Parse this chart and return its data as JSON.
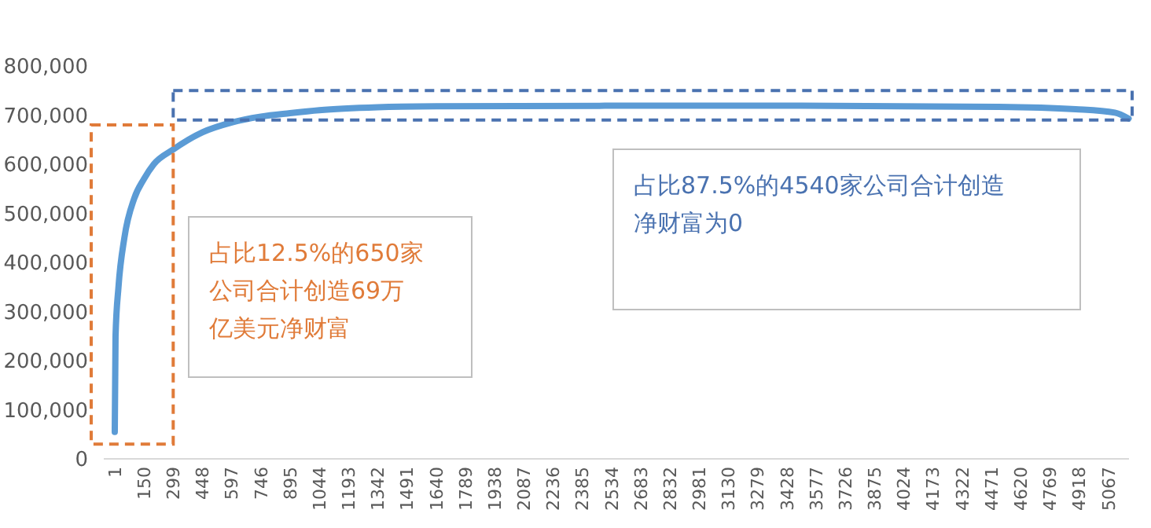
{
  "chart_data": {
    "type": "line",
    "x": [
      1,
      5,
      20,
      50,
      100,
      150,
      200,
      299,
      448,
      597,
      746,
      895,
      1044,
      1342,
      1640,
      2500,
      3500,
      4500,
      4900,
      5100,
      5170
    ],
    "series": [
      {
        "color": "#5b9bd5",
        "values": [
          55000,
          250000,
          350000,
          450000,
          530000,
          570000,
          600000,
          630000,
          665000,
          685000,
          697000,
          704000,
          710000,
          716000,
          718000,
          719000,
          719000,
          717000,
          712000,
          705000,
          693000
        ]
      }
    ],
    "xlim": [
      -55,
      5172
    ],
    "xticks": [
      1,
      150,
      299,
      448,
      597,
      746,
      895,
      1044,
      1193,
      1342,
      1491,
      1640,
      1789,
      1938,
      2087,
      2236,
      2385,
      2534,
      2683,
      2832,
      2981,
      3130,
      3279,
      3428,
      3577,
      3726,
      3875,
      4024,
      4173,
      4322,
      4471,
      4620,
      4769,
      4918,
      5067
    ],
    "ylim": [
      0,
      800000
    ],
    "yticks": [
      0,
      {
        "value": 100000,
        "label": "100,000"
      },
      {
        "value": 200000,
        "label": "200,000"
      },
      {
        "value": 300000,
        "label": "300,000"
      },
      {
        "value": 400000,
        "label": "400,000"
      },
      {
        "value": 500000,
        "label": "500,000"
      },
      {
        "value": 600000,
        "label": "600,000"
      },
      {
        "value": 700000,
        "label": "700,000"
      },
      {
        "value": 800000,
        "label": "800,000"
      }
    ],
    "annotations": [
      "占比12.5%的650家公司合计创造69万亿美元净财富",
      "占比87.5%的4540家公司合计创造净财富为0"
    ]
  }
}
